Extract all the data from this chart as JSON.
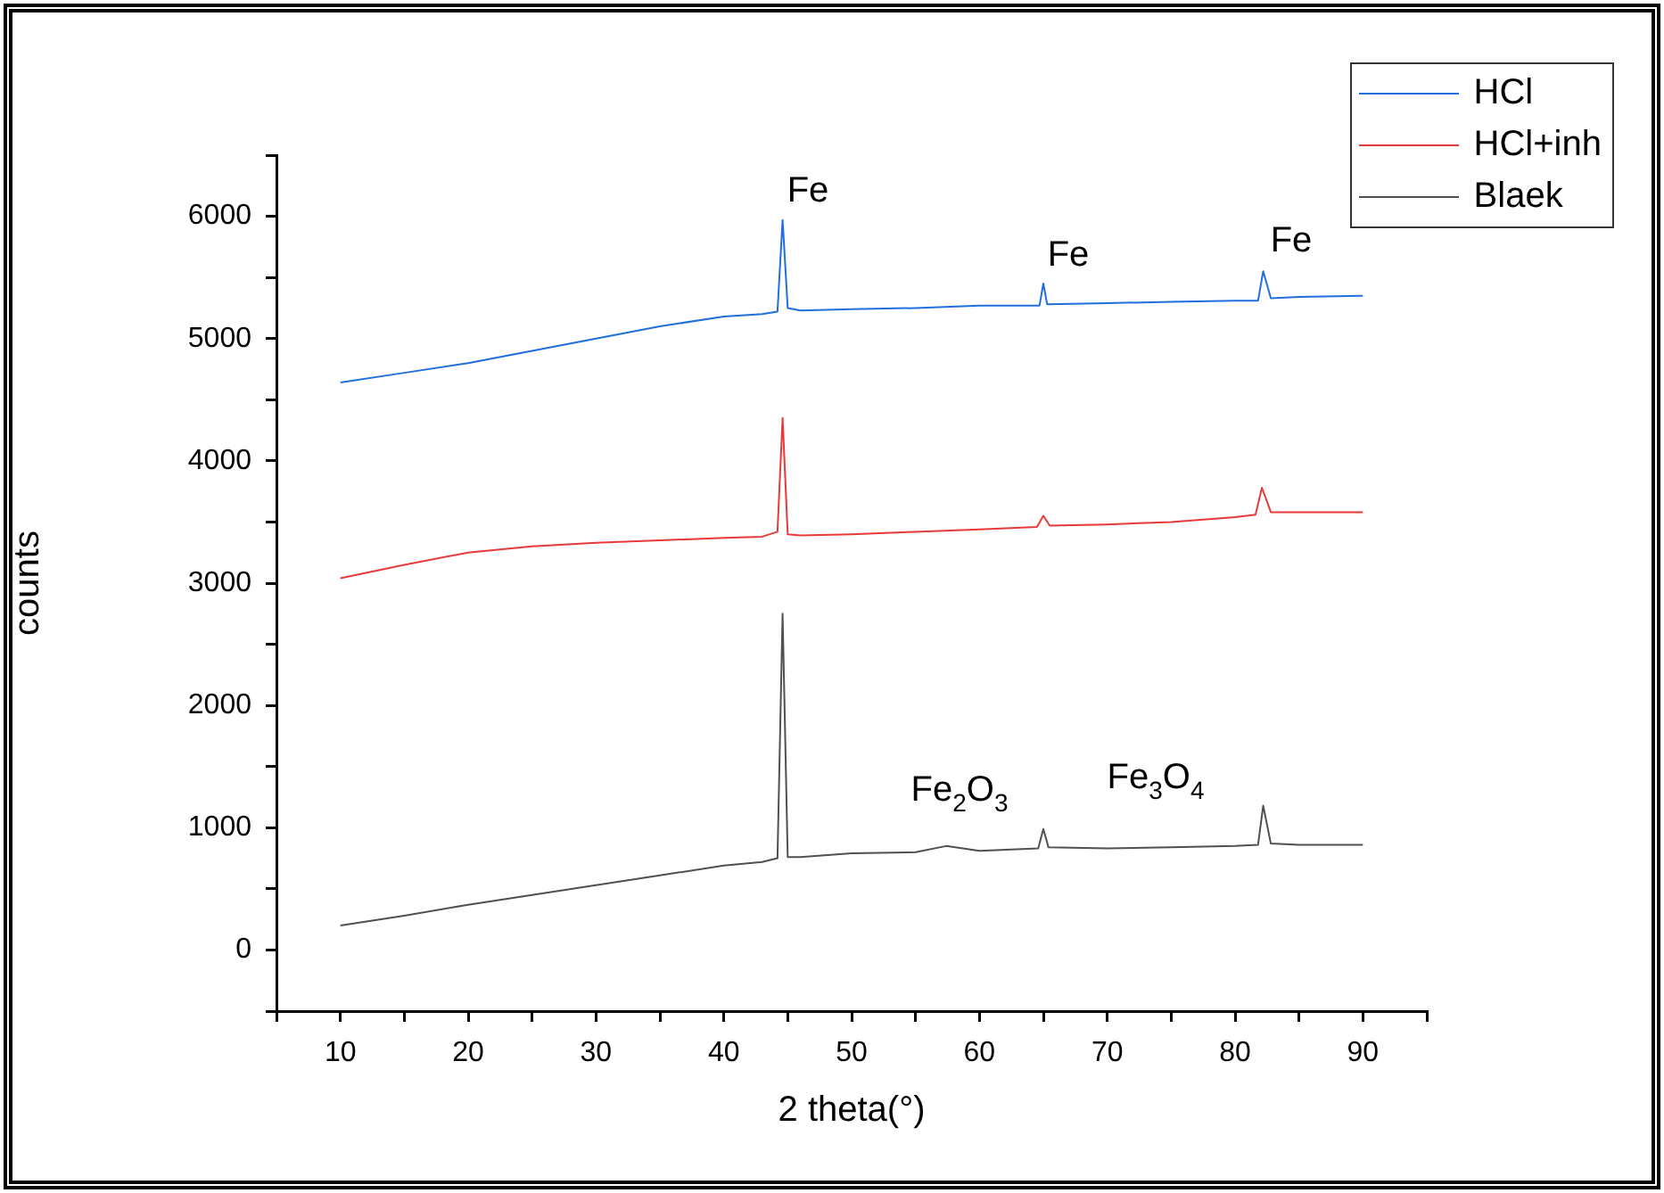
{
  "chart_data": {
    "type": "line",
    "xlabel": "2 theta(°)",
    "ylabel": "counts",
    "xlim": [
      5,
      95
    ],
    "xticks": [
      {
        "value": 5,
        "label": null
      },
      10,
      {
        "value": 15,
        "label": null
      },
      20,
      {
        "value": 25,
        "label": null
      },
      30,
      {
        "value": 35,
        "label": null
      },
      40,
      {
        "value": 45,
        "label": null
      },
      50,
      {
        "value": 55,
        "label": null
      },
      60,
      {
        "value": 65,
        "label": null
      },
      70,
      {
        "value": 75,
        "label": null
      },
      80,
      {
        "value": 85,
        "label": null
      },
      90,
      {
        "value": 95,
        "label": null
      }
    ],
    "ylim": [
      -500,
      6500
    ],
    "yticks": [
      {
        "value": -500,
        "label": null
      },
      0,
      {
        "value": 500,
        "label": null
      },
      1000,
      {
        "value": 1500,
        "label": null
      },
      2000,
      {
        "value": 2500,
        "label": null
      },
      3000,
      {
        "value": 3500,
        "label": null
      },
      4000,
      {
        "value": 4500,
        "label": null
      },
      5000,
      {
        "value": 5500,
        "label": null
      },
      6000,
      {
        "value": 6500,
        "label": null
      }
    ],
    "series": [
      {
        "name": "HCl",
        "color": "#1f6fde",
        "x": [
          10,
          15,
          20,
          25,
          30,
          35,
          40,
          43,
          44.2,
          44.6,
          45,
          46,
          50,
          55,
          60,
          64.7,
          65,
          65.3,
          70,
          75,
          80,
          81.8,
          82.2,
          82.8,
          85,
          90
        ],
        "values": [
          4640,
          4720,
          4800,
          4900,
          5000,
          5100,
          5180,
          5200,
          5220,
          5970,
          5250,
          5230,
          5240,
          5250,
          5270,
          5270,
          5450,
          5280,
          5290,
          5300,
          5310,
          5310,
          5550,
          5330,
          5340,
          5350
        ]
      },
      {
        "name": "HCl+inh",
        "color": "#e83a3a",
        "x": [
          10,
          15,
          20,
          25,
          30,
          35,
          40,
          43,
          44.2,
          44.6,
          45,
          46,
          50,
          55,
          60,
          64.5,
          65,
          65.5,
          70,
          75,
          80,
          81.6,
          82.1,
          82.8,
          85,
          90
        ],
        "values": [
          3040,
          3150,
          3250,
          3300,
          3330,
          3350,
          3370,
          3380,
          3420,
          4350,
          3400,
          3390,
          3400,
          3420,
          3440,
          3460,
          3550,
          3470,
          3480,
          3500,
          3540,
          3560,
          3780,
          3580,
          3580,
          3580
        ]
      },
      {
        "name": "Blaek",
        "color": "#505050",
        "x": [
          10,
          15,
          20,
          25,
          30,
          35,
          40,
          43,
          44.2,
          44.6,
          45,
          46,
          50,
          55,
          57.4,
          60,
          64.6,
          65,
          65.4,
          70,
          75,
          80,
          81.8,
          82.2,
          82.8,
          85,
          90
        ],
        "values": [
          200,
          280,
          370,
          450,
          530,
          610,
          690,
          720,
          750,
          2750,
          760,
          760,
          790,
          800,
          850,
          810,
          830,
          990,
          840,
          830,
          840,
          850,
          860,
          1180,
          870,
          860,
          860
        ]
      }
    ],
    "annotations": [
      "Fe",
      "Fe",
      "Fe",
      "Fe$_{2}$O$_{3}$",
      "Fe$_{3}$O$_{4}$"
    ],
    "legend": "top right",
    "marker": "none"
  }
}
